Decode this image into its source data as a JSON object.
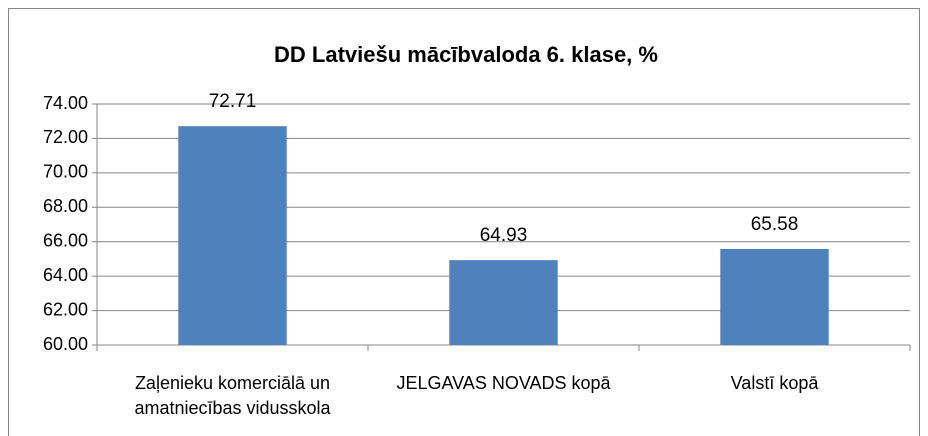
{
  "chart_data": {
    "type": "bar",
    "title": "DD Latviešu mācībvaloda 6. klase, %",
    "categories": [
      "Zaļenieku komerciālā un amatniecības vidusskola",
      "JELGAVAS NOVADS kopā",
      "Valstī kopā"
    ],
    "values": [
      72.71,
      64.93,
      65.58
    ],
    "color": "#4f81bd",
    "ylim": [
      60,
      74
    ],
    "yticks": [
      {
        "value": 60,
        "label": "60.00"
      },
      {
        "value": 62,
        "label": "62.00"
      },
      {
        "value": 64,
        "label": "64.00"
      },
      {
        "value": 66,
        "label": "66.00"
      },
      {
        "value": 68,
        "label": "68.00"
      },
      {
        "value": 70,
        "label": "70.00"
      },
      {
        "value": 72,
        "label": "72.00"
      },
      {
        "value": 74,
        "label": "74.00"
      }
    ],
    "grid": true
  }
}
